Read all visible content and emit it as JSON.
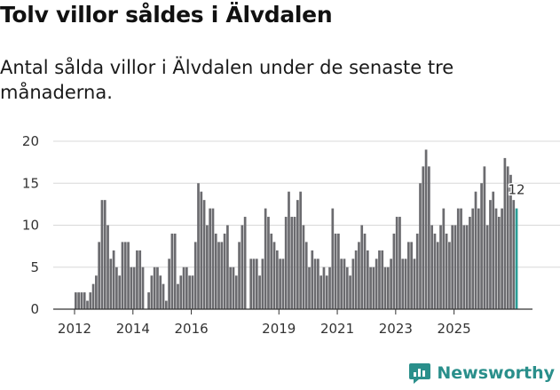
{
  "header": {
    "title": "Tolv villor såldes i Älvdalen",
    "subtitle": "Antal sålda villor i Älvdalen under de senaste tre månaderna."
  },
  "brand": {
    "name": "Newsworthy",
    "color": "#2a8f8b"
  },
  "colors": {
    "bar": "#6b6b6f",
    "highlight": "#2a9d96",
    "grid": "#d8d8d8",
    "axis": "#333333"
  },
  "chart_data": {
    "type": "bar",
    "title": "Tolv villor såldes i Älvdalen",
    "xlabel": "",
    "ylabel": "",
    "ylim": [
      0,
      20
    ],
    "yticks": [
      0,
      5,
      10,
      15,
      20
    ],
    "xticks": [
      {
        "label": "2012",
        "index": 0
      },
      {
        "label": "2014",
        "index": 20
      },
      {
        "label": "2016",
        "index": 40
      },
      {
        "label": "2019",
        "index": 70
      },
      {
        "label": "2021",
        "index": 90
      },
      {
        "label": "2023",
        "index": 110
      },
      {
        "label": "2025",
        "index": 130
      }
    ],
    "last_value_label": "12",
    "values": [
      2,
      2,
      2,
      2,
      1,
      2,
      3,
      4,
      8,
      13,
      13,
      10,
      6,
      7,
      5,
      4,
      8,
      8,
      8,
      5,
      5,
      7,
      7,
      5,
      0,
      2,
      4,
      5,
      5,
      4,
      3,
      1,
      6,
      9,
      9,
      3,
      4,
      5,
      5,
      4,
      4,
      8,
      15,
      14,
      13,
      10,
      12,
      12,
      9,
      8,
      8,
      9,
      10,
      5,
      5,
      4,
      8,
      10,
      11,
      0,
      6,
      6,
      6,
      4,
      6,
      12,
      11,
      9,
      8,
      7,
      6,
      6,
      11,
      14,
      11,
      11,
      13,
      14,
      10,
      8,
      5,
      7,
      6,
      6,
      4,
      5,
      4,
      5,
      12,
      9,
      9,
      6,
      6,
      5,
      4,
      6,
      7,
      8,
      10,
      9,
      7,
      5,
      5,
      6,
      7,
      7,
      5,
      5,
      6,
      9,
      11,
      11,
      6,
      6,
      8,
      8,
      6,
      9,
      15,
      17,
      19,
      17,
      10,
      9,
      8,
      10,
      12,
      9,
      8,
      10,
      10,
      12,
      12,
      10,
      10,
      11,
      12,
      14,
      12,
      15,
      17,
      10,
      13,
      14,
      12,
      11,
      12,
      18,
      17,
      16,
      13,
      12
    ]
  }
}
